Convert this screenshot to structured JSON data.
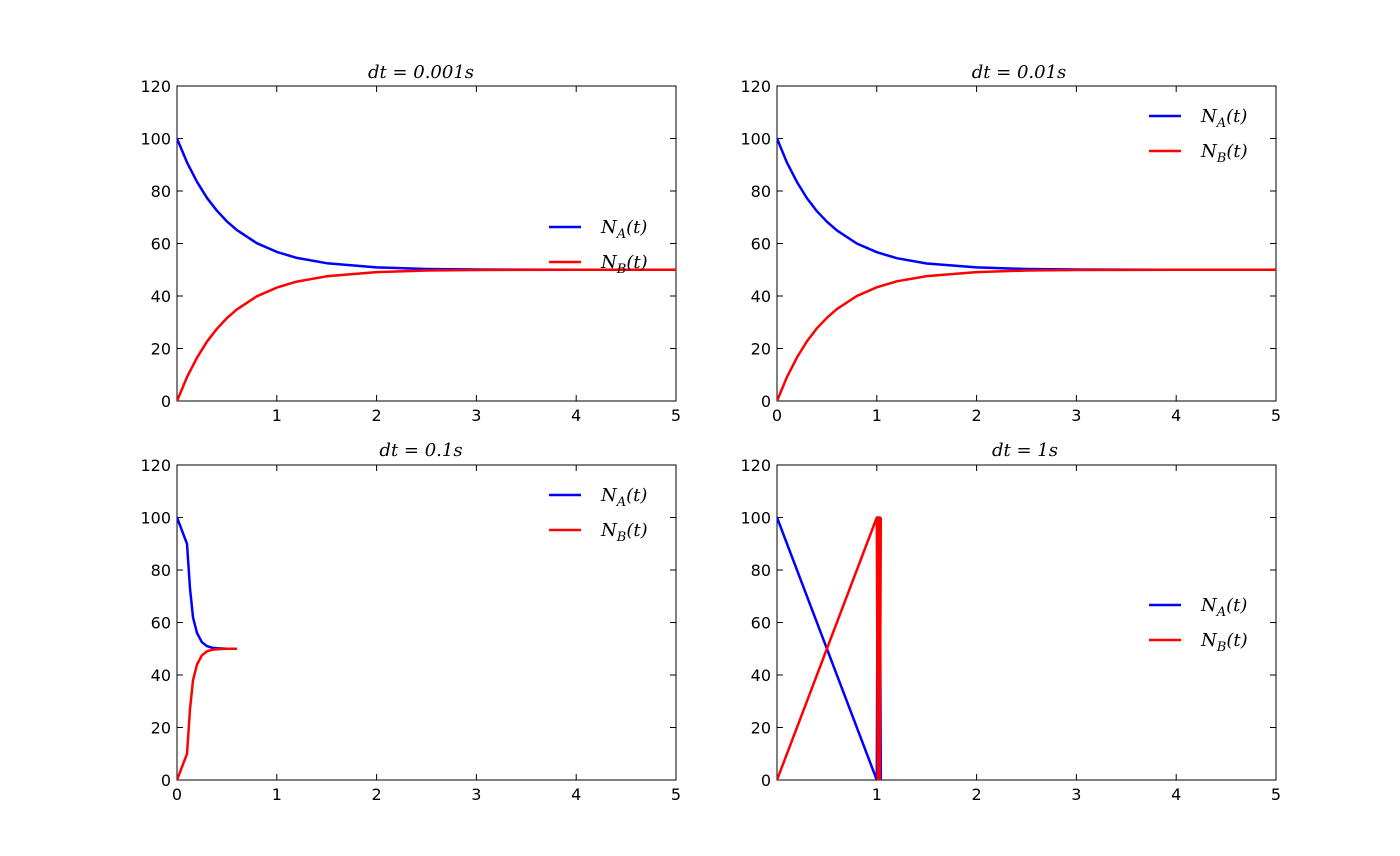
{
  "chart_data": [
    {
      "type": "line",
      "title": "dt = 0.001s",
      "xlim": [
        0,
        5
      ],
      "ylim": [
        0,
        120
      ],
      "xticks": [
        "1",
        "2",
        "3",
        "4",
        "5"
      ],
      "yticks": [
        "0",
        "20",
        "40",
        "60",
        "80",
        "100",
        "120"
      ],
      "grid": false,
      "legend": "center-right",
      "series": [
        {
          "name": "N_A(t)",
          "color": "#0000ff",
          "x": [
            0,
            0.1,
            0.2,
            0.3,
            0.4,
            0.5,
            0.6,
            0.8,
            1.0,
            1.2,
            1.5,
            2.0,
            2.5,
            3.0,
            4.0,
            5.0
          ],
          "y": [
            100,
            90.9,
            83.5,
            77.4,
            72.5,
            68.4,
            65.1,
            60.1,
            56.8,
            54.5,
            52.5,
            50.9,
            50.3,
            50.1,
            50.0,
            50.0
          ]
        },
        {
          "name": "N_B(t)",
          "color": "#ff0000",
          "x": [
            0,
            0.1,
            0.2,
            0.3,
            0.4,
            0.5,
            0.6,
            0.8,
            1.0,
            1.2,
            1.5,
            2.0,
            2.5,
            3.0,
            4.0,
            5.0
          ],
          "y": [
            0,
            9.1,
            16.5,
            22.6,
            27.5,
            31.6,
            34.9,
            39.9,
            43.2,
            45.5,
            47.5,
            49.1,
            49.7,
            49.9,
            50.0,
            50.0
          ]
        }
      ]
    },
    {
      "type": "line",
      "title": "dt = 0.01s",
      "xlim": [
        0,
        5
      ],
      "ylim": [
        0,
        120
      ],
      "xticks": [
        "0",
        "1",
        "2",
        "3",
        "4",
        "5"
      ],
      "yticks": [
        "0",
        "20",
        "40",
        "60",
        "80",
        "100",
        "120"
      ],
      "grid": false,
      "legend": "upper-right",
      "series": [
        {
          "name": "N_A(t)",
          "color": "#0000ff",
          "x": [
            0,
            0.1,
            0.2,
            0.3,
            0.4,
            0.5,
            0.6,
            0.8,
            1.0,
            1.2,
            1.5,
            2.0,
            2.5,
            3.0,
            4.0,
            5.0
          ],
          "y": [
            100,
            90.8,
            83.4,
            77.3,
            72.3,
            68.3,
            65.0,
            60.0,
            56.7,
            54.4,
            52.4,
            50.9,
            50.3,
            50.1,
            50.0,
            50.0
          ]
        },
        {
          "name": "N_B(t)",
          "color": "#ff0000",
          "x": [
            0,
            0.1,
            0.2,
            0.3,
            0.4,
            0.5,
            0.6,
            0.8,
            1.0,
            1.2,
            1.5,
            2.0,
            2.5,
            3.0,
            4.0,
            5.0
          ],
          "y": [
            0,
            9.2,
            16.6,
            22.7,
            27.7,
            31.7,
            35.0,
            40.0,
            43.3,
            45.6,
            47.6,
            49.1,
            49.7,
            49.9,
            50.0,
            50.0
          ]
        }
      ]
    },
    {
      "type": "line",
      "title": "dt = 0.1s",
      "xlim": [
        0,
        5
      ],
      "ylim": [
        0,
        120
      ],
      "xticks": [
        "0",
        "1",
        "2",
        "3",
        "4",
        "5"
      ],
      "yticks": [
        "0",
        "20",
        "40",
        "60",
        "80",
        "100",
        "120"
      ],
      "grid": false,
      "legend": "upper-right",
      "series": [
        {
          "name": "N_A(t)",
          "color": "#0000ff",
          "x": [
            0,
            0.1,
            0.13,
            0.16,
            0.2,
            0.25,
            0.3,
            0.35,
            0.4,
            0.5,
            0.6
          ],
          "y": [
            100,
            90,
            73,
            62,
            56,
            52.5,
            51,
            50.4,
            50.2,
            50,
            50
          ]
        },
        {
          "name": "N_B(t)",
          "color": "#ff0000",
          "x": [
            0,
            0.1,
            0.13,
            0.16,
            0.2,
            0.25,
            0.3,
            0.35,
            0.4,
            0.5,
            0.6
          ],
          "y": [
            0,
            10,
            27,
            38,
            44,
            47.5,
            49,
            49.6,
            49.8,
            50,
            50
          ]
        }
      ]
    },
    {
      "type": "line",
      "title": "dt = 1s",
      "xlim": [
        0,
        5
      ],
      "ylim": [
        0,
        120
      ],
      "xticks": [
        "1",
        "2",
        "3",
        "4",
        "5"
      ],
      "yticks": [
        "0",
        "20",
        "40",
        "60",
        "80",
        "100",
        "120"
      ],
      "grid": false,
      "legend": "center-right",
      "series": [
        {
          "name": "N_A(t)",
          "color": "#0000ff",
          "x": [
            0,
            1,
            1.01,
            1.02,
            1.03,
            1.04
          ],
          "y": [
            100,
            0,
            100,
            0,
            100,
            0
          ]
        },
        {
          "name": "N_B(t)",
          "color": "#ff0000",
          "x": [
            0,
            1,
            1.01,
            1.02,
            1.03,
            1.04
          ],
          "y": [
            0,
            100,
            0,
            100,
            0,
            100
          ]
        }
      ]
    }
  ]
}
